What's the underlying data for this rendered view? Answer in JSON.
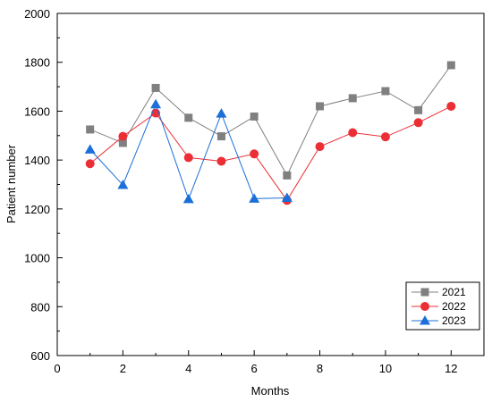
{
  "chart_data": {
    "type": "line",
    "x": [
      1,
      2,
      3,
      4,
      5,
      6,
      7,
      8,
      9,
      10,
      11,
      12
    ],
    "series": [
      {
        "name": "2021",
        "color": "#808080",
        "marker": "square",
        "x": [
          1,
          2,
          3,
          4,
          5,
          6,
          7,
          8,
          9,
          10,
          11,
          12
        ],
        "values": [
          1525,
          1470,
          1695,
          1573,
          1497,
          1578,
          1337,
          1620,
          1653,
          1682,
          1604,
          1788
        ]
      },
      {
        "name": "2022",
        "color": "#ec2e35",
        "marker": "circle",
        "x": [
          1,
          2,
          3,
          4,
          5,
          6,
          7,
          8,
          9,
          10,
          11,
          12
        ],
        "values": [
          1385,
          1497,
          1592,
          1410,
          1395,
          1425,
          1235,
          1455,
          1512,
          1495,
          1553,
          1620
        ]
      },
      {
        "name": "2023",
        "color": "#1c6fd8",
        "marker": "triangle",
        "x": [
          1,
          2,
          3,
          4,
          5,
          6,
          7
        ],
        "values": [
          1443,
          1298,
          1628,
          1240,
          1590,
          1242,
          1245
        ]
      }
    ],
    "xlabel": "Months",
    "ylabel": "Patient number",
    "xlim": [
      0,
      13
    ],
    "ylim": [
      600,
      2000
    ],
    "xticks": [
      "0",
      "2",
      "4",
      "6",
      "8",
      "10",
      "12"
    ],
    "yticks": [
      "600",
      "800",
      "1000",
      "1200",
      "1400",
      "1600",
      "1800",
      "2000"
    ],
    "grid": false,
    "legend_position": "bottom-right"
  }
}
